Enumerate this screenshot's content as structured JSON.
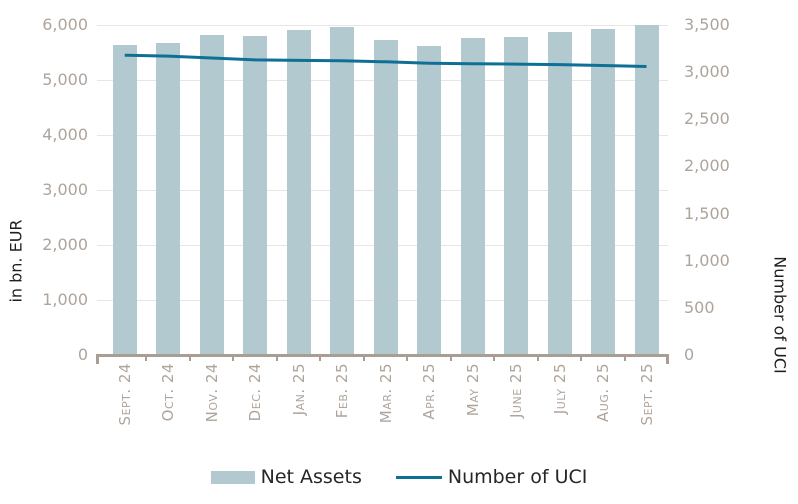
{
  "chart_data": {
    "type": "combo",
    "title": "",
    "categories": [
      "Sept. 24",
      "Oct. 24",
      "Nov. 24",
      "Dec. 24",
      "Jan. 25",
      "Feb. 25",
      "Mar. 25",
      "Apr. 25",
      "May 25",
      "June 25",
      "July 25",
      "Aug. 25",
      "Sept. 25"
    ],
    "series": [
      {
        "name": "Net Assets",
        "type": "bar",
        "axis": "left",
        "color": "#b2cacf",
        "values": [
          5640,
          5665,
          5820,
          5805,
          5910,
          5960,
          5735,
          5610,
          5760,
          5780,
          5870,
          5925,
          6005
        ]
      },
      {
        "name": "Number of UCI",
        "type": "line",
        "axis": "right",
        "color": "#0f7096",
        "values": [
          3180,
          3170,
          3150,
          3130,
          3125,
          3120,
          3110,
          3095,
          3090,
          3085,
          3080,
          3070,
          3060
        ]
      }
    ],
    "left_axis": {
      "label": "in bn. EUR",
      "min": 0,
      "max": 6000,
      "step": 1000,
      "tick_labels": [
        "0",
        "1,000",
        "2,000",
        "3,000",
        "4,000",
        "5,000",
        "6,000"
      ]
    },
    "right_axis": {
      "label": "Number of UCI",
      "min": 0,
      "max": 3500,
      "step": 500,
      "tick_labels": [
        "0",
        "500",
        "1,000",
        "1,500",
        "2,000",
        "2,500",
        "3,000",
        "3,500"
      ]
    },
    "grid": true,
    "legend_position": "bottom"
  },
  "colors": {
    "bar": "#b2cacf",
    "line": "#0f7096",
    "tick_label": "#aea49b",
    "axis_line": "#a89e94",
    "gridline": "#e8e6e3",
    "axis_title": "#1f1f1f",
    "legend_text": "#262626",
    "background": "#ffffff"
  }
}
